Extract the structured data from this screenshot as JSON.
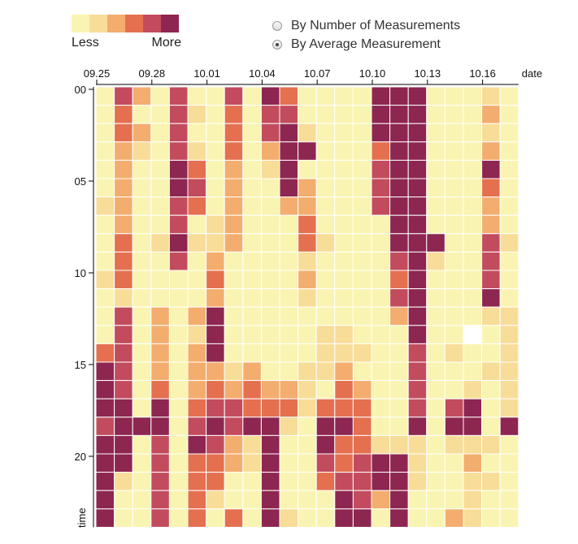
{
  "legend": {
    "less_label": "Less",
    "more_label": "More"
  },
  "colors": [
    "#f9f4b2",
    "#f8dd98",
    "#f3ad6e",
    "#e4704f",
    "#c24c5e",
    "#8d2650"
  ],
  "empty_color": "#ffffff",
  "controls": {
    "options": [
      {
        "label": "By Number of Measurements",
        "checked": false
      },
      {
        "label": "By Average Measurement",
        "checked": true
      }
    ]
  },
  "chart_data": {
    "type": "heatmap",
    "xlabel": "date",
    "ylabel": "time",
    "x_tick_labels": [
      "09.25",
      "09.28",
      "10.01",
      "10.04",
      "10.07",
      "10.10",
      "10.13",
      "10.16"
    ],
    "y_tick_labels": [
      "00",
      "05",
      "10",
      "15",
      "20"
    ],
    "columns": [
      "09.25",
      "09.26",
      "09.27",
      "09.28",
      "09.29",
      "09.30",
      "10.01",
      "10.02",
      "10.03",
      "10.04",
      "10.05",
      "10.06",
      "10.07",
      "10.08",
      "10.09",
      "10.10",
      "10.11",
      "10.12",
      "10.13",
      "10.14",
      "10.15",
      "10.16",
      "10.17"
    ],
    "rows": [
      "00",
      "01",
      "02",
      "03",
      "04",
      "05",
      "06",
      "07",
      "08",
      "09",
      "10",
      "11",
      "12",
      "13",
      "14",
      "15",
      "16",
      "17",
      "18",
      "19",
      "20",
      "21",
      "22",
      "23"
    ],
    "levels": [
      [
        0,
        4,
        2,
        0,
        4,
        0,
        0,
        4,
        0,
        5,
        3,
        0,
        0,
        0,
        0,
        5,
        5,
        5,
        0,
        0,
        0,
        1,
        0
      ],
      [
        0,
        3,
        0,
        0,
        4,
        1,
        0,
        3,
        0,
        4,
        4,
        0,
        0,
        0,
        0,
        5,
        5,
        5,
        0,
        0,
        0,
        2,
        0
      ],
      [
        0,
        3,
        2,
        0,
        4,
        0,
        0,
        3,
        0,
        4,
        5,
        1,
        0,
        0,
        0,
        5,
        5,
        5,
        0,
        0,
        0,
        1,
        0
      ],
      [
        0,
        2,
        1,
        0,
        4,
        1,
        0,
        3,
        0,
        2,
        5,
        5,
        0,
        0,
        0,
        3,
        5,
        5,
        0,
        0,
        0,
        2,
        0
      ],
      [
        0,
        2,
        0,
        0,
        5,
        3,
        0,
        2,
        0,
        1,
        5,
        0,
        0,
        0,
        0,
        4,
        5,
        5,
        0,
        0,
        0,
        5,
        0
      ],
      [
        0,
        2,
        0,
        0,
        5,
        4,
        0,
        2,
        0,
        0,
        5,
        2,
        0,
        0,
        0,
        4,
        5,
        5,
        0,
        0,
        0,
        3,
        0
      ],
      [
        1,
        2,
        0,
        0,
        4,
        3,
        0,
        2,
        0,
        0,
        2,
        2,
        0,
        0,
        0,
        4,
        5,
        5,
        0,
        0,
        0,
        2,
        0
      ],
      [
        0,
        2,
        0,
        0,
        4,
        0,
        1,
        2,
        0,
        0,
        0,
        3,
        0,
        0,
        0,
        0,
        5,
        5,
        0,
        0,
        0,
        2,
        0
      ],
      [
        0,
        3,
        0,
        1,
        5,
        1,
        1,
        2,
        0,
        0,
        0,
        3,
        1,
        0,
        0,
        0,
        5,
        5,
        5,
        0,
        0,
        4,
        1
      ],
      [
        0,
        3,
        0,
        0,
        4,
        0,
        2,
        0,
        0,
        0,
        0,
        1,
        0,
        0,
        0,
        0,
        4,
        5,
        1,
        0,
        0,
        4,
        0
      ],
      [
        1,
        3,
        0,
        0,
        0,
        0,
        3,
        0,
        0,
        0,
        0,
        2,
        0,
        0,
        0,
        0,
        3,
        5,
        0,
        0,
        0,
        4,
        0
      ],
      [
        0,
        1,
        0,
        0,
        0,
        0,
        2,
        0,
        0,
        0,
        0,
        1,
        0,
        0,
        0,
        0,
        4,
        5,
        0,
        0,
        0,
        5,
        0
      ],
      [
        0,
        4,
        0,
        2,
        0,
        2,
        5,
        0,
        0,
        0,
        0,
        0,
        0,
        0,
        0,
        0,
        2,
        5,
        0,
        0,
        0,
        1,
        1
      ],
      [
        0,
        4,
        0,
        2,
        0,
        1,
        5,
        0,
        0,
        0,
        0,
        0,
        1,
        1,
        0,
        0,
        0,
        5,
        0,
        0,
        -1,
        0,
        1
      ],
      [
        3,
        4,
        0,
        2,
        0,
        2,
        5,
        0,
        0,
        0,
        0,
        0,
        1,
        1,
        1,
        0,
        0,
        4,
        0,
        1,
        0,
        0,
        1
      ],
      [
        5,
        4,
        0,
        2,
        0,
        2,
        2,
        1,
        2,
        0,
        0,
        1,
        1,
        2,
        0,
        0,
        0,
        4,
        0,
        0,
        0,
        1,
        1
      ],
      [
        5,
        4,
        0,
        3,
        0,
        2,
        3,
        2,
        3,
        2,
        2,
        1,
        0,
        3,
        2,
        0,
        0,
        4,
        0,
        0,
        1,
        0,
        1
      ],
      [
        5,
        5,
        0,
        5,
        0,
        3,
        4,
        4,
        3,
        3,
        3,
        1,
        3,
        3,
        3,
        0,
        0,
        4,
        0,
        4,
        5,
        0,
        1
      ],
      [
        4,
        5,
        5,
        5,
        0,
        4,
        5,
        4,
        5,
        5,
        1,
        0,
        5,
        5,
        3,
        0,
        0,
        5,
        0,
        5,
        5,
        0,
        5
      ],
      [
        5,
        5,
        0,
        4,
        0,
        5,
        4,
        2,
        1,
        5,
        0,
        0,
        5,
        3,
        3,
        1,
        1,
        1,
        0,
        1,
        1,
        1,
        0
      ],
      [
        5,
        5,
        0,
        4,
        0,
        3,
        3,
        2,
        1,
        5,
        0,
        0,
        4,
        3,
        4,
        5,
        5,
        1,
        0,
        0,
        2,
        0,
        0
      ],
      [
        5,
        1,
        0,
        4,
        0,
        3,
        3,
        0,
        0,
        5,
        0,
        0,
        3,
        4,
        4,
        5,
        5,
        1,
        0,
        0,
        1,
        1,
        0
      ],
      [
        5,
        0,
        0,
        4,
        0,
        3,
        1,
        0,
        0,
        5,
        0,
        0,
        0,
        5,
        4,
        2,
        5,
        0,
        0,
        0,
        1,
        0,
        0
      ],
      [
        5,
        0,
        0,
        4,
        0,
        3,
        0,
        3,
        0,
        5,
        1,
        0,
        0,
        5,
        5,
        0,
        5,
        0,
        0,
        2,
        1,
        0,
        0
      ]
    ]
  }
}
